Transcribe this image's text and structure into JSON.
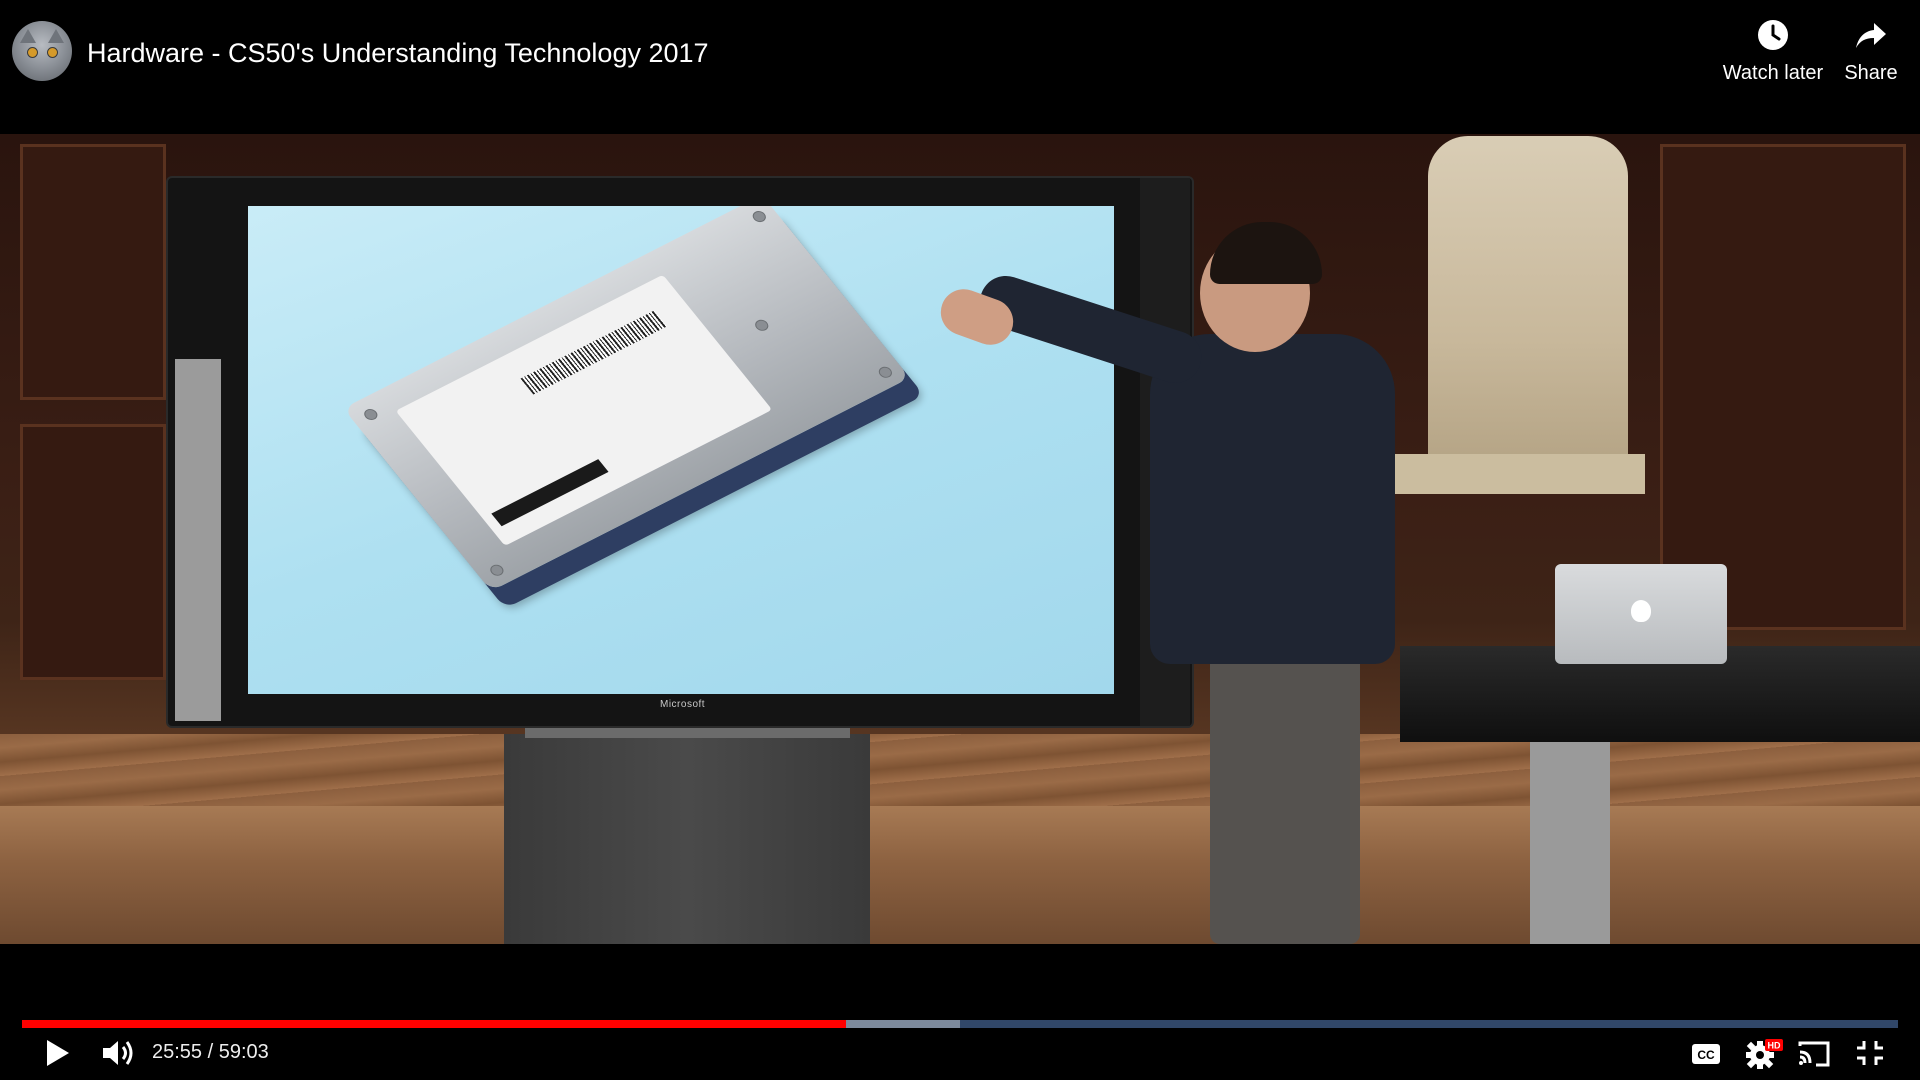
{
  "header": {
    "title": "Hardware - CS50's Understanding Technology 2017",
    "watch_later_label": "Watch later",
    "share_label": "Share"
  },
  "video": {
    "screen_brand": "Microsoft"
  },
  "player": {
    "current_time": "25:55",
    "separator": " / ",
    "duration": "59:03",
    "played_fraction": 0.439,
    "buffered_fraction": 0.5,
    "quality_badge": "HD"
  },
  "icons": {
    "channel_avatar": "avatar",
    "watch_later": "clock-icon",
    "share": "share-arrow-icon",
    "play": "play-icon",
    "volume": "volume-icon",
    "captions": "cc-icon",
    "settings": "gear-icon",
    "cast": "cast-icon",
    "exit_fullscreen": "exit-fullscreen-icon"
  },
  "colors": {
    "progress_played": "#ff0000",
    "progress_track": "#5a82be",
    "hd_badge": "#ff0000"
  }
}
